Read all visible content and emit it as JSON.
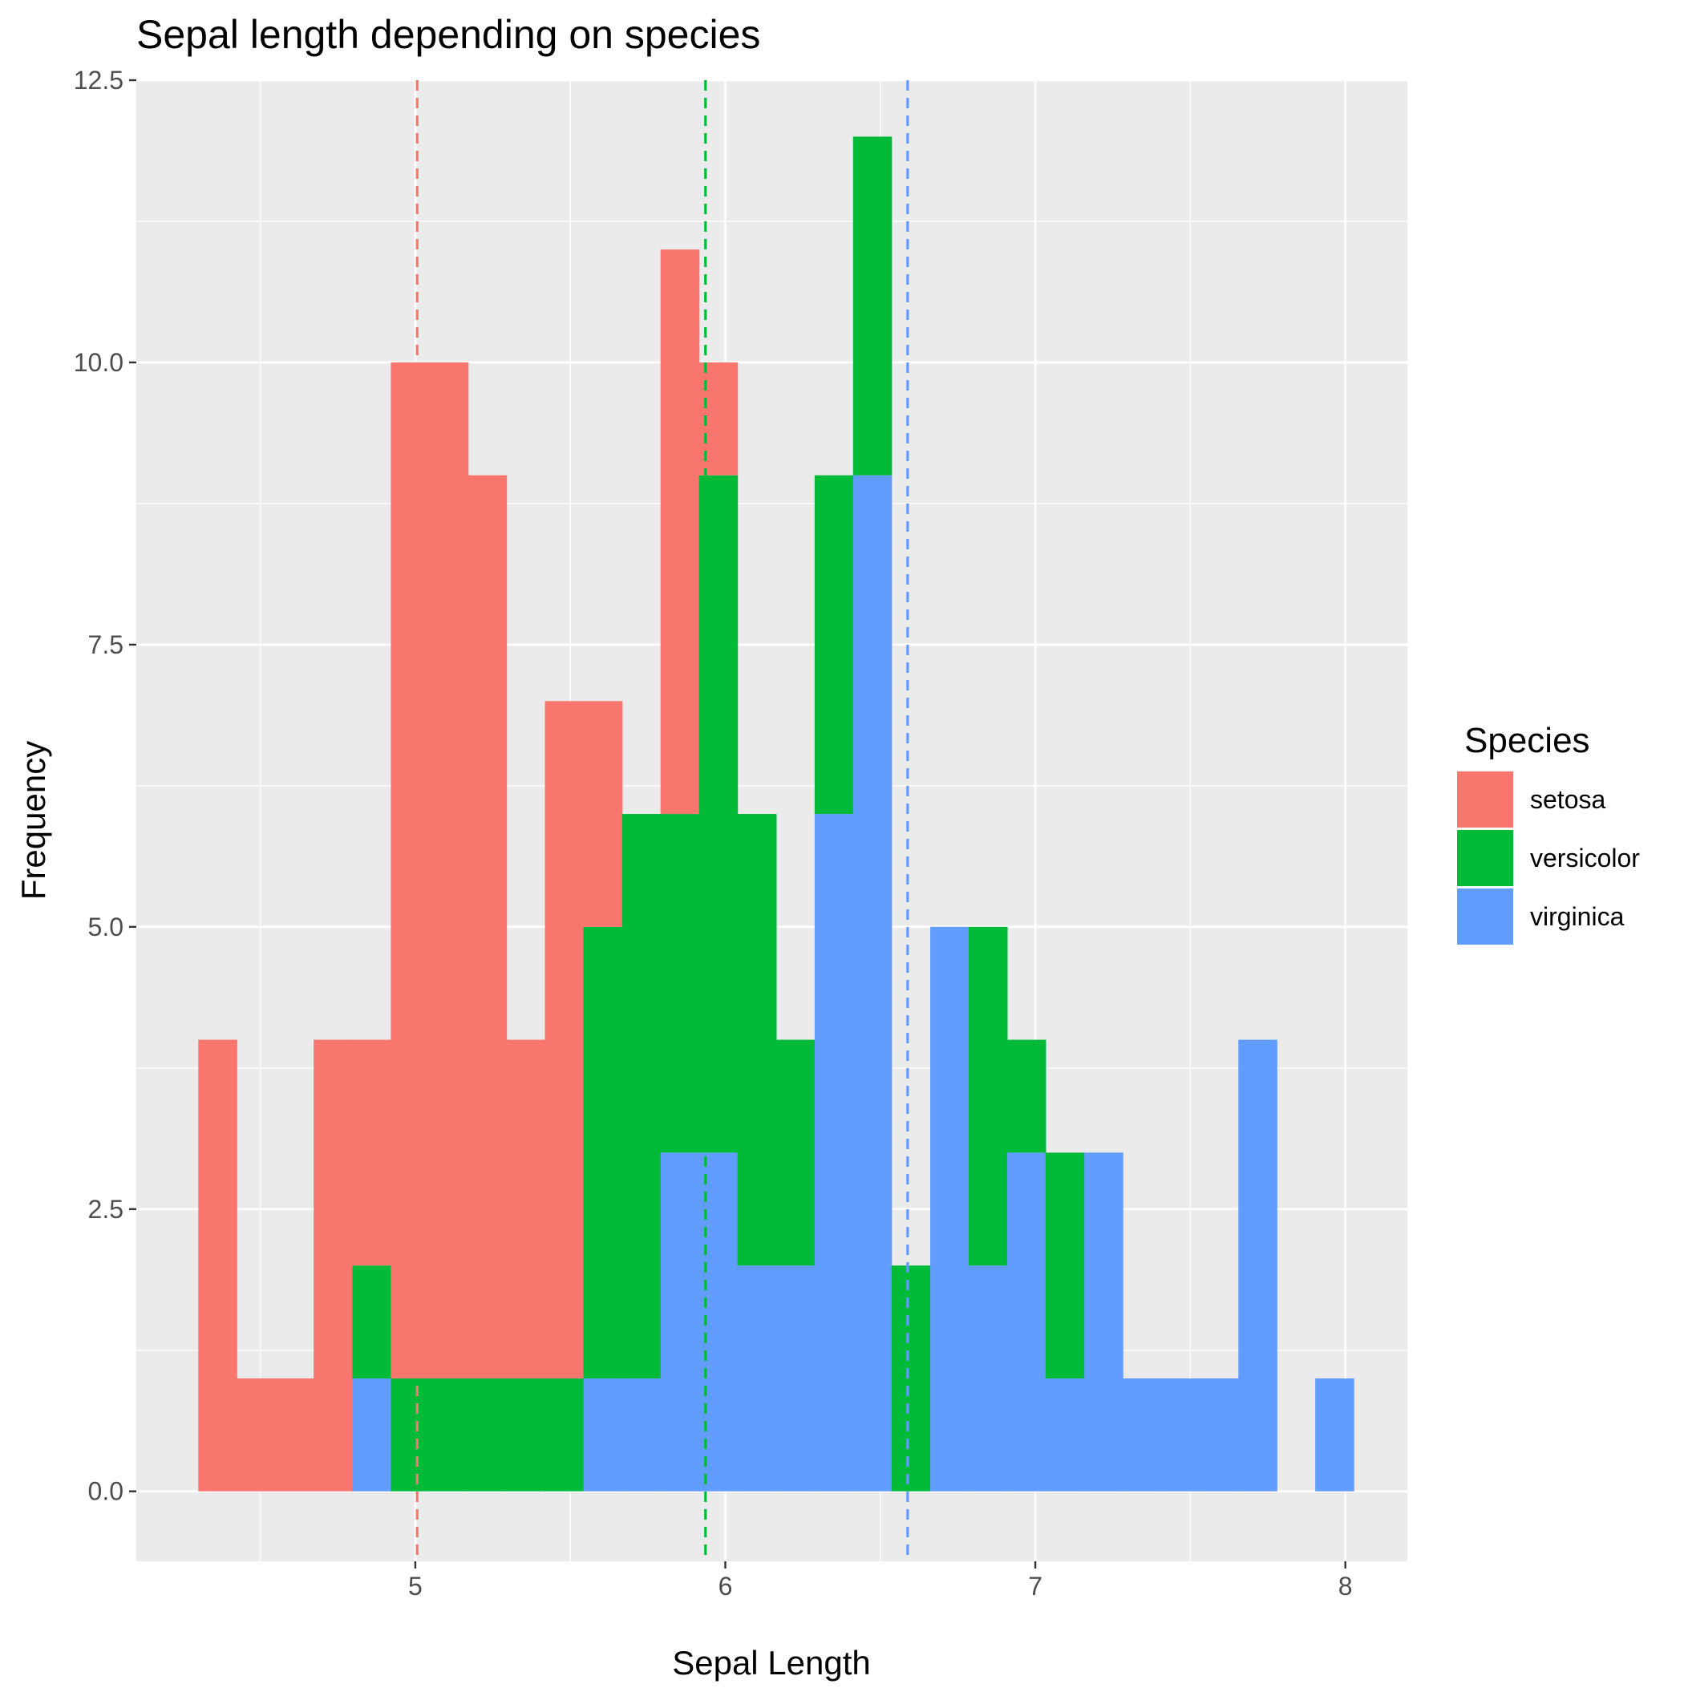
{
  "chart_data": {
    "type": "bar",
    "subtype": "stacked-histogram",
    "title": "Sepal length depending on species",
    "xlabel": "Sepal Length",
    "ylabel": "Frequency",
    "xlim": [
      4.1,
      8.2
    ],
    "ylim": [
      -0.62,
      12.5
    ],
    "x_ticks": [
      5,
      6,
      7,
      8
    ],
    "x_tick_labels": [
      "5",
      "6",
      "7",
      "8"
    ],
    "y_ticks": [
      0,
      2.5,
      5,
      7.5,
      10,
      12.5
    ],
    "y_tick_labels": [
      "0.0",
      "2.5",
      "5.0",
      "7.5",
      "10.0",
      "12.5"
    ],
    "grid": true,
    "legend_title": "Species",
    "legend_position": "right",
    "bins": [
      {
        "x0": 4.3,
        "x1": 4.424
      },
      {
        "x0": 4.424,
        "x1": 4.548
      },
      {
        "x0": 4.548,
        "x1": 4.672
      },
      {
        "x0": 4.672,
        "x1": 4.797
      },
      {
        "x0": 4.797,
        "x1": 4.921
      },
      {
        "x0": 4.921,
        "x1": 5.045
      },
      {
        "x0": 5.045,
        "x1": 5.17
      },
      {
        "x0": 5.17,
        "x1": 5.294
      },
      {
        "x0": 5.294,
        "x1": 5.418
      },
      {
        "x0": 5.418,
        "x1": 5.542
      },
      {
        "x0": 5.542,
        "x1": 5.667
      },
      {
        "x0": 5.667,
        "x1": 5.791
      },
      {
        "x0": 5.791,
        "x1": 5.915
      },
      {
        "x0": 5.915,
        "x1": 6.039
      },
      {
        "x0": 6.039,
        "x1": 6.164
      },
      {
        "x0": 6.164,
        "x1": 6.288
      },
      {
        "x0": 6.288,
        "x1": 6.412
      },
      {
        "x0": 6.412,
        "x1": 6.536
      },
      {
        "x0": 6.536,
        "x1": 6.661
      },
      {
        "x0": 6.661,
        "x1": 6.785
      },
      {
        "x0": 6.785,
        "x1": 6.909
      },
      {
        "x0": 6.909,
        "x1": 7.033
      },
      {
        "x0": 7.033,
        "x1": 7.158
      },
      {
        "x0": 7.158,
        "x1": 7.282
      },
      {
        "x0": 7.282,
        "x1": 7.406
      },
      {
        "x0": 7.406,
        "x1": 7.53
      },
      {
        "x0": 7.53,
        "x1": 7.655
      },
      {
        "x0": 7.655,
        "x1": 7.779
      },
      {
        "x0": 7.779,
        "x1": 7.903
      },
      {
        "x0": 7.903,
        "x1": 8.027
      }
    ],
    "series": [
      {
        "name": "setosa",
        "color": "#F8766D",
        "values": [
          4,
          1,
          1,
          4,
          2,
          9,
          9,
          8,
          3,
          6,
          2,
          0,
          5,
          1,
          0,
          0,
          0,
          0,
          0,
          0,
          0,
          0,
          0,
          0,
          0,
          0,
          0,
          0,
          0,
          0
        ],
        "mean": 5.006
      },
      {
        "name": "versicolor",
        "color": "#00BA38",
        "values": [
          0,
          0,
          0,
          0,
          1,
          1,
          1,
          1,
          1,
          1,
          4,
          5,
          3,
          6,
          4,
          2,
          3,
          3,
          2,
          0,
          3,
          1,
          2,
          0,
          0,
          0,
          0,
          0,
          0,
          0
        ],
        "mean": 5.936
      },
      {
        "name": "virginica",
        "color": "#619CFF",
        "values": [
          0,
          0,
          0,
          0,
          1,
          0,
          0,
          0,
          0,
          0,
          1,
          1,
          3,
          3,
          2,
          2,
          6,
          9,
          0,
          5,
          2,
          3,
          1,
          3,
          1,
          1,
          1,
          4,
          0,
          1
        ],
        "mean": 6.588
      }
    ]
  }
}
